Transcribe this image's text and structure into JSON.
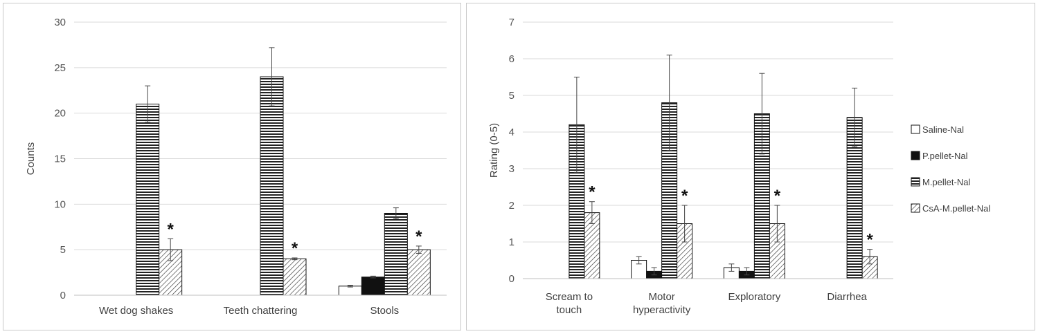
{
  "series_styles": {
    "Saline-Nal": {
      "fill": "#ffffff"
    },
    "P.pellet-Nal": {
      "fill": "#111111"
    },
    "M.pellet-Nal": {
      "pattern": "horizontal-stripes"
    },
    "CsA-M.pellet-Nal": {
      "pattern": "diagonal-hatch"
    }
  },
  "chart_data": [
    {
      "type": "bar",
      "ylabel": "Counts",
      "ylim": [
        0,
        30
      ],
      "yticks": [
        0,
        5,
        10,
        15,
        20,
        25,
        30
      ],
      "grid": true,
      "legend": "none",
      "categories": [
        "Wet dog shakes",
        "Teeth chattering",
        "Stools"
      ],
      "series": [
        {
          "name": "Saline-Nal",
          "values": [
            null,
            null,
            1
          ],
          "errors": [
            null,
            null,
            0.1
          ]
        },
        {
          "name": "P.pellet-Nal",
          "values": [
            null,
            null,
            2
          ],
          "errors": [
            null,
            null,
            0.1
          ]
        },
        {
          "name": "M.pellet-Nal",
          "values": [
            21,
            24,
            9
          ],
          "errors": [
            2,
            3.2,
            0.6
          ]
        },
        {
          "name": "CsA-M.pellet-Nal",
          "values": [
            5,
            4,
            5
          ],
          "errors": [
            1.2,
            0.1,
            0.4
          ]
        }
      ],
      "annotations": [
        {
          "category": "Wet dog shakes",
          "series": "CsA-M.pellet-Nal",
          "text": "*"
        },
        {
          "category": "Teeth chattering",
          "series": "CsA-M.pellet-Nal",
          "text": "*"
        },
        {
          "category": "Stools",
          "series": "CsA-M.pellet-Nal",
          "text": "*"
        }
      ]
    },
    {
      "type": "bar",
      "ylabel": "Rating (0-5)",
      "ylim": [
        0,
        7
      ],
      "yticks": [
        0,
        1,
        2,
        3,
        4,
        5,
        6,
        7
      ],
      "grid": true,
      "legend": "right",
      "categories": [
        [
          "Scream to",
          "touch"
        ],
        [
          "Motor",
          "hyperactivity"
        ],
        [
          "Exploratory"
        ],
        [
          "Diarrhea"
        ]
      ],
      "series": [
        {
          "name": "Saline-Nal",
          "values": [
            null,
            0.5,
            0.3,
            null
          ],
          "errors": [
            null,
            0.1,
            0.1,
            null
          ]
        },
        {
          "name": "P.pellet-Nal",
          "values": [
            null,
            0.2,
            0.2,
            null
          ],
          "errors": [
            null,
            0.1,
            0.1,
            null
          ]
        },
        {
          "name": "M.pellet-Nal",
          "values": [
            4.2,
            4.8,
            4.5,
            4.4
          ],
          "errors": [
            1.3,
            1.3,
            1.1,
            0.8
          ]
        },
        {
          "name": "CsA-M.pellet-Nal",
          "values": [
            1.8,
            1.5,
            1.5,
            0.6
          ],
          "errors": [
            0.3,
            0.5,
            0.5,
            0.2
          ]
        }
      ],
      "annotations": [
        {
          "category": 0,
          "series": "CsA-M.pellet-Nal",
          "text": "*"
        },
        {
          "category": 1,
          "series": "CsA-M.pellet-Nal",
          "text": "*"
        },
        {
          "category": 2,
          "series": "CsA-M.pellet-Nal",
          "text": "*"
        },
        {
          "category": 3,
          "series": "CsA-M.pellet-Nal",
          "text": "*"
        }
      ],
      "legend_entries": [
        "Saline-Nal",
        "P.pellet-Nal",
        "M.pellet-Nal",
        "CsA-M.pellet-Nal"
      ]
    }
  ]
}
